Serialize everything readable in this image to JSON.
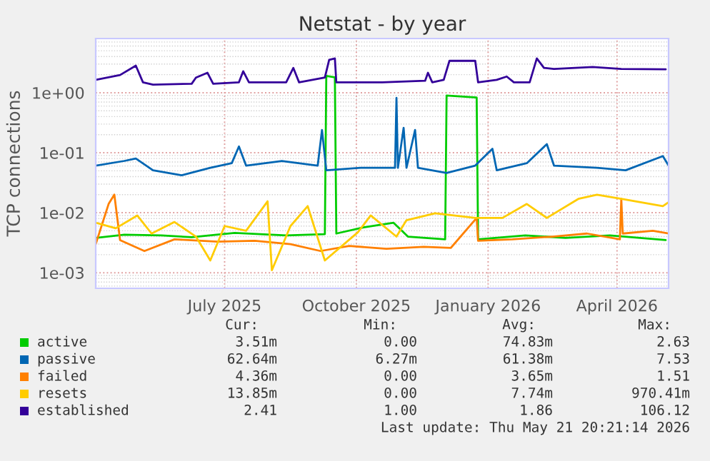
{
  "chart_data": {
    "type": "line",
    "title": "Netstat - by year",
    "ylabel": "TCP connections",
    "log": "y",
    "grid": true,
    "legend": "bottom",
    "xlim": [
      "2025-04-16",
      "2026-05-21"
    ],
    "xticks": [
      {
        "value": "2025-07-15",
        "label": "July 2025"
      },
      {
        "value": "2025-10-15",
        "label": "October 2025"
      },
      {
        "value": "2026-01-15",
        "label": "January 2026"
      },
      {
        "value": "2026-04-15",
        "label": "April 2026"
      }
    ],
    "ylim": [
      0.00055,
      8
    ],
    "yticks": [
      {
        "value": 0.001,
        "label": "1e-03"
      },
      {
        "value": 0.01,
        "label": "1e-02"
      },
      {
        "value": 0.1,
        "label": "1e-01"
      },
      {
        "value": 1,
        "label": "1e+00"
      }
    ],
    "series": [
      {
        "name": "active",
        "color": "#00cc00",
        "x": [
          "2025-04-16",
          "2025-05-06",
          "2025-06-01",
          "2025-06-22",
          "2025-07-22",
          "2025-08-27",
          "2025-09-23",
          "2025-09-24",
          "2025-09-30",
          "2025-10-01",
          "2025-10-20",
          "2025-11-10",
          "2025-11-20",
          "2025-12-16",
          "2025-12-17",
          "2026-01-07",
          "2026-01-08",
          "2026-02-10",
          "2026-03-10",
          "2026-04-10",
          "2026-05-19"
        ],
        "values": [
          0.0038,
          0.0043,
          0.0042,
          0.0039,
          0.0046,
          0.0042,
          0.0044,
          1.9,
          1.8,
          0.0045,
          0.0057,
          0.0068,
          0.004,
          0.0036,
          0.9,
          0.83,
          0.0036,
          0.0042,
          0.0038,
          0.0042,
          0.0035
        ]
      },
      {
        "name": "passive",
        "color": "#0066b3",
        "x": [
          "2025-04-16",
          "2025-05-06",
          "2025-05-14",
          "2025-05-26",
          "2025-06-15",
          "2025-07-05",
          "2025-07-20",
          "2025-07-25",
          "2025-07-30",
          "2025-08-24",
          "2025-09-18",
          "2025-09-21",
          "2025-09-24",
          "2025-10-18",
          "2025-11-11",
          "2025-11-12",
          "2025-11-13",
          "2025-11-17",
          "2025-11-19",
          "2025-11-25",
          "2025-11-27",
          "2025-12-17",
          "2026-01-06",
          "2026-01-18",
          "2026-01-21",
          "2026-02-11",
          "2026-02-25",
          "2026-03-02",
          "2026-04-01",
          "2026-04-21",
          "2026-05-17",
          "2026-05-21"
        ],
        "values": [
          0.061,
          0.073,
          0.08,
          0.051,
          0.042,
          0.056,
          0.067,
          0.127,
          0.061,
          0.073,
          0.061,
          0.24,
          0.051,
          0.056,
          0.056,
          0.82,
          0.056,
          0.26,
          0.056,
          0.24,
          0.056,
          0.046,
          0.061,
          0.116,
          0.051,
          0.067,
          0.139,
          0.061,
          0.056,
          0.051,
          0.088,
          0.061
        ]
      },
      {
        "name": "failed",
        "color": "#ff8000",
        "x": [
          "2025-04-16",
          "2025-04-25",
          "2025-04-29",
          "2025-05-03",
          "2025-05-20",
          "2025-06-10",
          "2025-07-10",
          "2025-08-05",
          "2025-08-30",
          "2025-09-20",
          "2025-10-10",
          "2025-11-05",
          "2025-12-01",
          "2025-12-20",
          "2026-01-07",
          "2026-01-08",
          "2026-02-01",
          "2026-03-01",
          "2026-03-25",
          "2026-04-17",
          "2026-04-18",
          "2026-04-19",
          "2026-05-10",
          "2026-05-21"
        ],
        "values": [
          0.003,
          0.014,
          0.02,
          0.0035,
          0.0023,
          0.0036,
          0.0033,
          0.0034,
          0.003,
          0.0023,
          0.0028,
          0.0025,
          0.0027,
          0.0026,
          0.0082,
          0.0034,
          0.0036,
          0.004,
          0.0045,
          0.0036,
          0.017,
          0.0045,
          0.005,
          0.0045
        ]
      },
      {
        "name": "resets",
        "color": "#ffcc00",
        "x": [
          "2025-04-16",
          "2025-04-30",
          "2025-05-15",
          "2025-05-25",
          "2025-06-10",
          "2025-06-25",
          "2025-07-05",
          "2025-07-15",
          "2025-07-30",
          "2025-08-14",
          "2025-08-17",
          "2025-08-30",
          "2025-09-11",
          "2025-09-23",
          "2025-10-16",
          "2025-10-25",
          "2025-11-12",
          "2025-11-19",
          "2025-12-09",
          "2026-01-06",
          "2026-01-25",
          "2026-02-11",
          "2026-02-25",
          "2026-03-19",
          "2026-04-01",
          "2026-04-18",
          "2026-05-17",
          "2026-05-21"
        ],
        "values": [
          0.0068,
          0.0055,
          0.009,
          0.0045,
          0.007,
          0.004,
          0.0016,
          0.006,
          0.005,
          0.0155,
          0.0011,
          0.006,
          0.0129,
          0.0016,
          0.0047,
          0.009,
          0.004,
          0.0075,
          0.0098,
          0.0082,
          0.0082,
          0.014,
          0.0082,
          0.017,
          0.02,
          0.017,
          0.0129,
          0.015
        ]
      },
      {
        "name": "established",
        "color": "#330099",
        "x": [
          "2025-04-16",
          "2025-05-03",
          "2025-05-14",
          "2025-05-19",
          "2025-05-26",
          "2025-06-22",
          "2025-06-25",
          "2025-07-03",
          "2025-07-07",
          "2025-07-25",
          "2025-07-28",
          "2025-08-01",
          "2025-08-27",
          "2025-09-01",
          "2025-09-05",
          "2025-09-23",
          "2025-09-26",
          "2025-09-30",
          "2025-10-01",
          "2025-11-02",
          "2025-12-02",
          "2025-12-04",
          "2025-12-07",
          "2025-12-15",
          "2025-12-19",
          "2026-01-06",
          "2026-01-08",
          "2026-01-21",
          "2026-01-28",
          "2026-02-02",
          "2026-02-13",
          "2026-02-18",
          "2026-02-23",
          "2026-03-02",
          "2026-03-29",
          "2026-04-18",
          "2026-05-19"
        ],
        "values": [
          1.64,
          1.97,
          2.83,
          1.49,
          1.36,
          1.41,
          1.79,
          2.15,
          1.41,
          1.49,
          2.28,
          1.49,
          1.49,
          2.59,
          1.49,
          1.79,
          3.53,
          3.73,
          1.49,
          1.49,
          1.58,
          2.15,
          1.49,
          1.64,
          3.4,
          3.4,
          1.49,
          1.64,
          1.86,
          1.49,
          1.49,
          3.73,
          2.59,
          2.49,
          2.68,
          2.49,
          2.45
        ]
      }
    ],
    "annotations": [
      "Cur:",
      "Min:",
      "Avg:",
      "Max:",
      "3.51m",
      "0.00",
      "74.83m",
      "2.63",
      "62.64m",
      "6.27m",
      "61.38m",
      "7.53",
      "4.36m",
      "0.00",
      "3.65m",
      "1.51",
      "13.85m",
      "0.00",
      "7.74m",
      "970.41m",
      "2.41",
      "1.00",
      "1.86",
      "106.12",
      "Last update: Thu May 21 20:21:14 2026"
    ]
  }
}
